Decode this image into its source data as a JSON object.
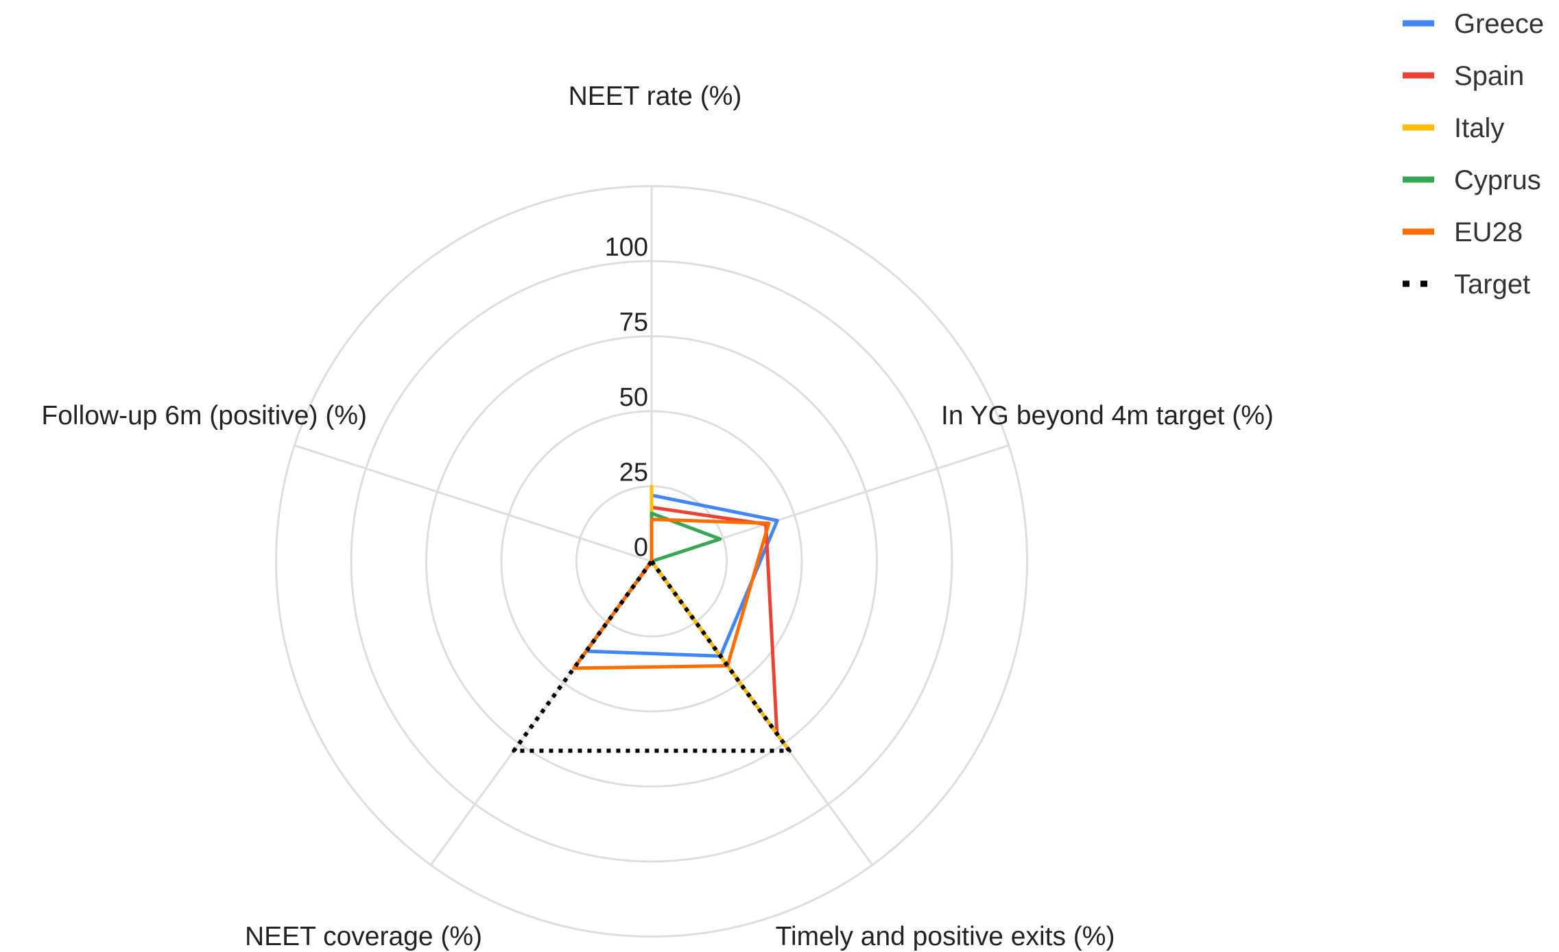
{
  "chart_data": {
    "type": "radar",
    "axes": [
      "NEET rate (%)",
      "In YG beyond 4m target (%)",
      "Timely and positive exits (%)",
      "NEET coverage (%)",
      "Follow-up 6m (positive) (%)"
    ],
    "rlim": [
      0,
      100
    ],
    "ticks": [
      "0",
      "25",
      "50",
      "75",
      "100"
    ],
    "grid": true,
    "legend_position": "top-right",
    "series": [
      {
        "name": "Greece",
        "color": "#4285f4",
        "values": [
          22,
          44,
          39,
          37,
          0
        ],
        "dashed": false
      },
      {
        "name": "Spain",
        "color": "#ea4335",
        "values": [
          18,
          40,
          71,
          0,
          0
        ],
        "dashed": false
      },
      {
        "name": "Italy",
        "color": "#fbbc04",
        "values": [
          25,
          0,
          78,
          0,
          0
        ],
        "dashed": false
      },
      {
        "name": "Cyprus",
        "color": "#34a853",
        "values": [
          16,
          24,
          0,
          37,
          0
        ],
        "dashed": false
      },
      {
        "name": "EU28",
        "color": "#ff6d01",
        "values": [
          14,
          41,
          43,
          44,
          0
        ],
        "dashed": false
      },
      {
        "name": "Target",
        "color": "#000000",
        "values": [
          0,
          0,
          78,
          78,
          0
        ],
        "dashed": true
      }
    ]
  }
}
